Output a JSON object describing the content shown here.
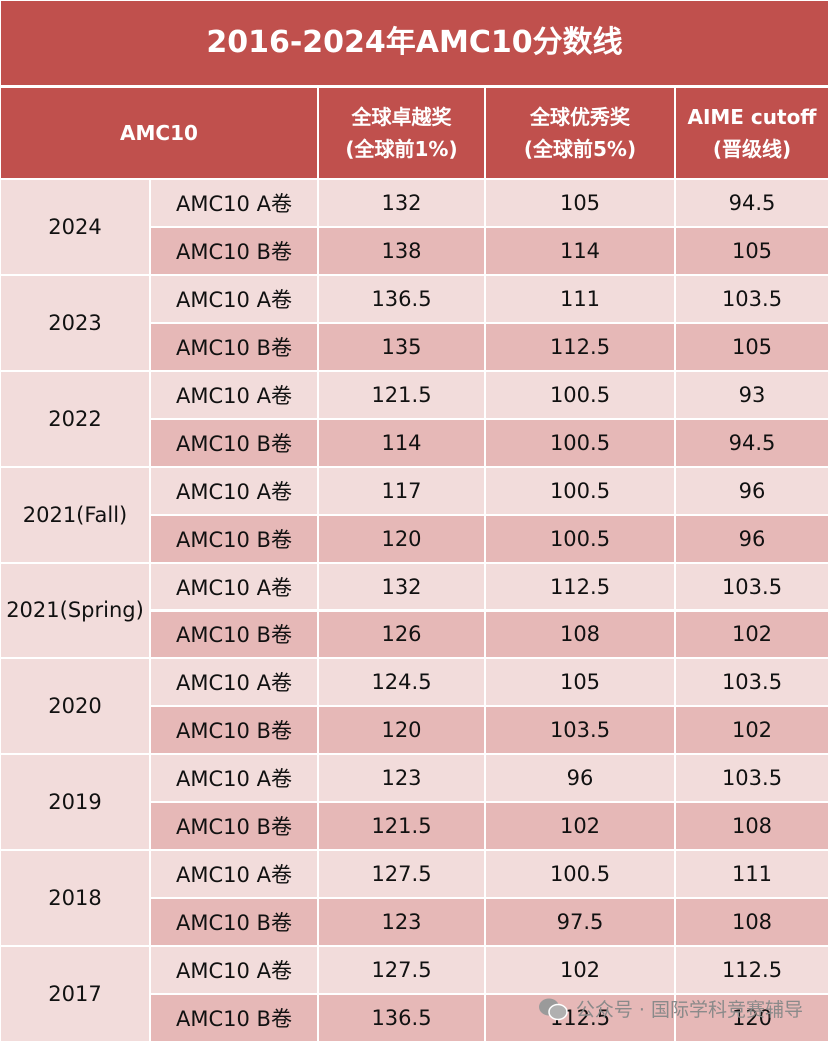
{
  "title": "2016-2024年AMC10分数线",
  "table": {
    "header": {
      "first": "AMC10",
      "columns": [
        [
          "全球卓越奖",
          "(全球前1%)"
        ],
        [
          "全球优秀奖",
          "(全球前5%)"
        ],
        [
          "AIME cutoff",
          "(晋级线)"
        ]
      ]
    },
    "groups": [
      {
        "year": "2024",
        "rows": [
          {
            "label": "AMC10 A卷",
            "values": [
              132,
              105,
              94.5
            ]
          },
          {
            "label": "AMC10 B卷",
            "values": [
              138,
              114,
              105
            ]
          }
        ]
      },
      {
        "year": "2023",
        "rows": [
          {
            "label": "AMC10 A卷",
            "values": [
              136.5,
              111,
              103.5
            ]
          },
          {
            "label": "AMC10 B卷",
            "values": [
              135,
              112.5,
              105
            ]
          }
        ]
      },
      {
        "year": "2022",
        "rows": [
          {
            "label": "AMC10 A卷",
            "values": [
              121.5,
              100.5,
              93
            ]
          },
          {
            "label": "AMC10 B卷",
            "values": [
              114,
              100.5,
              94.5
            ]
          }
        ]
      },
      {
        "year": "2021(Fall)",
        "rows": [
          {
            "label": "AMC10 A卷",
            "values": [
              117,
              100.5,
              96
            ]
          },
          {
            "label": "AMC10 B卷",
            "values": [
              120,
              100.5,
              96
            ]
          }
        ]
      },
      {
        "year": "2021(Spring)",
        "rows": [
          {
            "label": "AMC10 A卷",
            "values": [
              132,
              112.5,
              103.5
            ]
          },
          {
            "label": "AMC10 B卷",
            "values": [
              126,
              108,
              102
            ]
          }
        ]
      },
      {
        "year": "2020",
        "rows": [
          {
            "label": "AMC10 A卷",
            "values": [
              124.5,
              105,
              103.5
            ]
          },
          {
            "label": "AMC10 B卷",
            "values": [
              120,
              103.5,
              102
            ]
          }
        ]
      },
      {
        "year": "2019",
        "rows": [
          {
            "label": "AMC10 A卷",
            "values": [
              123,
              96,
              103.5
            ]
          },
          {
            "label": "AMC10 B卷",
            "values": [
              121.5,
              102,
              108
            ]
          }
        ]
      },
      {
        "year": "2018",
        "rows": [
          {
            "label": "AMC10 A卷",
            "values": [
              127.5,
              100.5,
              111
            ]
          },
          {
            "label": "AMC10 B卷",
            "values": [
              123,
              97.5,
              108
            ]
          }
        ]
      },
      {
        "year": "2017",
        "rows": [
          {
            "label": "AMC10 A卷",
            "values": [
              127.5,
              102,
              112.5
            ]
          },
          {
            "label": "AMC10 B卷",
            "values": [
              136.5,
              112.5,
              120
            ]
          }
        ]
      }
    ]
  },
  "watermark": "公众号 · 国际学科竞赛辅导"
}
